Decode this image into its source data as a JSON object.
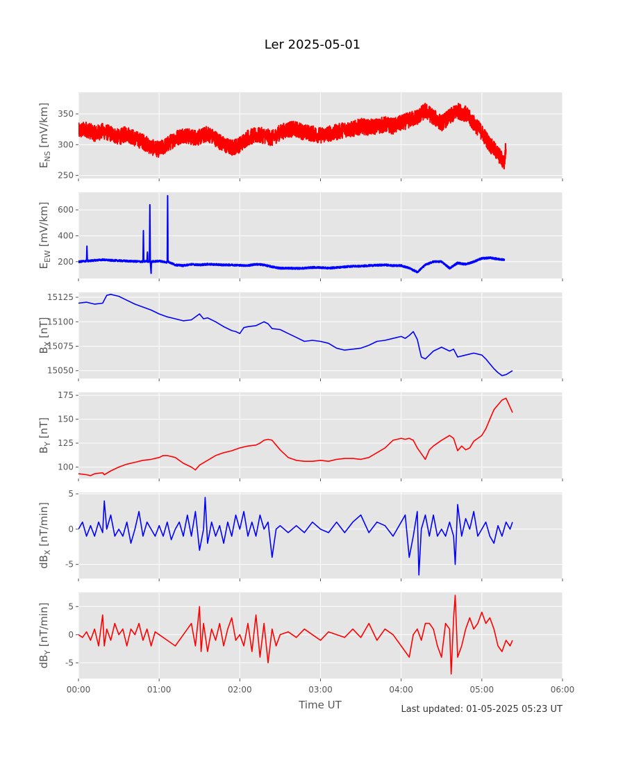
{
  "title": "Ler 2025-05-01",
  "xlabel": "Time UT",
  "footer": "Last updated: 01-05-2025 05:23 UT",
  "x_ticks": [
    "00:00",
    "01:00",
    "02:00",
    "03:00",
    "04:00",
    "05:00",
    "06:00"
  ],
  "chart_data": [
    {
      "type": "line",
      "name": "ens",
      "ylabel": "E_NS [mV/km]",
      "ylabel_main": "E",
      "ylabel_sub": "NS",
      "ylabel_tail": " [mV/km]",
      "x_unit": "hours UT",
      "xlim": [
        0,
        6
      ],
      "ylim": [
        245,
        385
      ],
      "yticks": [
        250,
        300,
        350
      ],
      "color": "#ff0000",
      "noise": 13,
      "stroke_width": 2,
      "series": [
        {
          "x": [
            0,
            0.1,
            0.2,
            0.3,
            0.4,
            0.5,
            0.6,
            0.7,
            0.8,
            0.9,
            1.0,
            1.1,
            1.2,
            1.3,
            1.4,
            1.5,
            1.6,
            1.7,
            1.8,
            1.9,
            2.0,
            2.1,
            2.2,
            2.3,
            2.4,
            2.5,
            2.6,
            2.7,
            2.8,
            2.9,
            3.0,
            3.1,
            3.2,
            3.3,
            3.4,
            3.5,
            3.6,
            3.7,
            3.8,
            3.9,
            4.0,
            4.1,
            4.2,
            4.3,
            4.4,
            4.5,
            4.6,
            4.7,
            4.8,
            4.9,
            5.0,
            5.1,
            5.2,
            5.28,
            5.3
          ],
          "y": [
            322,
            325,
            318,
            322,
            318,
            312,
            318,
            310,
            305,
            296,
            292,
            300,
            310,
            316,
            312,
            312,
            318,
            310,
            300,
            295,
            300,
            312,
            315,
            315,
            310,
            320,
            325,
            325,
            320,
            318,
            315,
            318,
            320,
            325,
            325,
            330,
            328,
            330,
            333,
            330,
            335,
            340,
            345,
            355,
            345,
            335,
            345,
            355,
            350,
            335,
            320,
            300,
            285,
            270,
            300
          ]
        }
      ]
    },
    {
      "type": "line",
      "name": "eew",
      "ylabel": "E_EW [mV/km]",
      "ylabel_main": "E",
      "ylabel_sub": "EW",
      "ylabel_tail": " [mV/km]",
      "x_unit": "hours UT",
      "xlim": [
        0,
        6
      ],
      "ylim": [
        70,
        735
      ],
      "yticks": [
        200,
        400,
        600
      ],
      "color": "#0000ff",
      "noise": 7,
      "stroke_width": 2,
      "series": [
        {
          "x": [
            0,
            0.1,
            0.105,
            0.11,
            0.2,
            0.3,
            0.4,
            0.5,
            0.6,
            0.8,
            0.805,
            0.81,
            0.85,
            0.855,
            0.86,
            0.88,
            0.885,
            0.89,
            0.9,
            0.905,
            0.91,
            1.0,
            1.1,
            1.105,
            1.11,
            1.2,
            1.3,
            1.4,
            1.5,
            1.6,
            1.7,
            1.8,
            1.9,
            2.0,
            2.1,
            2.2,
            2.3,
            2.4,
            2.5,
            2.6,
            2.7,
            2.8,
            2.9,
            3.0,
            3.1,
            3.2,
            3.3,
            3.4,
            3.5,
            3.6,
            3.7,
            3.8,
            3.9,
            4.0,
            4.1,
            4.2,
            4.3,
            4.4,
            4.5,
            4.6,
            4.7,
            4.8,
            4.9,
            5.0,
            5.1,
            5.2,
            5.28
          ],
          "y": [
            200,
            205,
            320,
            205,
            210,
            215,
            210,
            208,
            205,
            200,
            440,
            200,
            205,
            280,
            200,
            205,
            640,
            200,
            110,
            200,
            200,
            205,
            195,
            710,
            200,
            175,
            170,
            180,
            175,
            180,
            178,
            175,
            175,
            172,
            170,
            180,
            175,
            160,
            150,
            150,
            148,
            150,
            155,
            155,
            150,
            155,
            160,
            165,
            165,
            170,
            172,
            175,
            170,
            170,
            150,
            120,
            175,
            200,
            200,
            150,
            190,
            180,
            200,
            225,
            230,
            220,
            215
          ]
        }
      ]
    },
    {
      "type": "line",
      "name": "bx",
      "ylabel": "B_X [nT]",
      "ylabel_main": "B",
      "ylabel_sub": "X",
      "ylabel_tail": " [nT]",
      "x_unit": "hours UT",
      "xlim": [
        0,
        6
      ],
      "ylim": [
        15042,
        15130
      ],
      "yticks": [
        15050,
        15075,
        15100,
        15125
      ],
      "color": "#0000ff",
      "noise": 0,
      "stroke_width": 1.6,
      "series": [
        {
          "x": [
            0,
            0.1,
            0.2,
            0.3,
            0.35,
            0.4,
            0.5,
            0.6,
            0.7,
            0.8,
            0.9,
            1.0,
            1.1,
            1.2,
            1.3,
            1.4,
            1.5,
            1.55,
            1.6,
            1.7,
            1.8,
            1.9,
            1.95,
            2.0,
            2.05,
            2.1,
            2.2,
            2.3,
            2.35,
            2.4,
            2.5,
            2.6,
            2.7,
            2.8,
            2.9,
            3.0,
            3.1,
            3.2,
            3.3,
            3.4,
            3.5,
            3.6,
            3.7,
            3.8,
            3.9,
            4.0,
            4.05,
            4.1,
            4.15,
            4.2,
            4.25,
            4.3,
            4.4,
            4.5,
            4.6,
            4.65,
            4.7,
            4.8,
            4.9,
            5.0,
            5.05,
            5.1,
            5.15,
            5.2,
            5.25,
            5.3,
            5.38
          ],
          "y": [
            15119,
            15120,
            15118,
            15119,
            15127,
            15128,
            15126,
            15122,
            15118,
            15115,
            15112,
            15108,
            15105,
            15103,
            15101,
            15102,
            15108,
            15103,
            15104,
            15100,
            15095,
            15091,
            15090,
            15088,
            15094,
            15095,
            15096,
            15100,
            15098,
            15093,
            15092,
            15088,
            15084,
            15080,
            15081,
            15080,
            15078,
            15073,
            15071,
            15072,
            15073,
            15076,
            15080,
            15081,
            15083,
            15085,
            15083,
            15086,
            15090,
            15082,
            15064,
            15062,
            15070,
            15074,
            15070,
            15072,
            15064,
            15066,
            15068,
            15066,
            15062,
            15057,
            15052,
            15048,
            15045,
            15046,
            15050
          ]
        }
      ]
    },
    {
      "type": "line",
      "name": "by",
      "ylabel": "B_Y [nT]",
      "ylabel_main": "B",
      "ylabel_sub": "Y",
      "ylabel_tail": " [nT]",
      "x_unit": "hours UT",
      "xlim": [
        0,
        6
      ],
      "ylim": [
        88,
        178
      ],
      "yticks": [
        100,
        125,
        150,
        175
      ],
      "color": "#ff0000",
      "noise": 0,
      "stroke_width": 1.6,
      "series": [
        {
          "x": [
            0,
            0.1,
            0.15,
            0.2,
            0.3,
            0.32,
            0.4,
            0.5,
            0.6,
            0.7,
            0.8,
            0.9,
            1.0,
            1.05,
            1.1,
            1.2,
            1.3,
            1.4,
            1.45,
            1.5,
            1.6,
            1.7,
            1.8,
            1.9,
            2.0,
            2.1,
            2.2,
            2.25,
            2.3,
            2.35,
            2.4,
            2.5,
            2.6,
            2.7,
            2.8,
            2.9,
            3.0,
            3.1,
            3.2,
            3.3,
            3.4,
            3.5,
            3.6,
            3.7,
            3.8,
            3.9,
            4.0,
            4.05,
            4.1,
            4.15,
            4.2,
            4.25,
            4.3,
            4.35,
            4.4,
            4.5,
            4.6,
            4.65,
            4.7,
            4.75,
            4.8,
            4.85,
            4.9,
            5.0,
            5.05,
            5.1,
            5.15,
            5.2,
            5.25,
            5.3,
            5.38
          ],
          "y": [
            93,
            92,
            91,
            93,
            94,
            92,
            96,
            100,
            103,
            105,
            107,
            108,
            110,
            112,
            112,
            110,
            104,
            100,
            97,
            102,
            107,
            112,
            115,
            117,
            120,
            122,
            123,
            125,
            128,
            129,
            128,
            118,
            110,
            107,
            106,
            106,
            107,
            106,
            108,
            109,
            109,
            108,
            110,
            115,
            120,
            128,
            130,
            129,
            130,
            128,
            120,
            114,
            108,
            118,
            122,
            128,
            133,
            130,
            117,
            122,
            118,
            120,
            127,
            133,
            140,
            150,
            160,
            165,
            170,
            172,
            157
          ]
        }
      ]
    },
    {
      "type": "line",
      "name": "dbx",
      "ylabel": "dB_X [nT/min]",
      "ylabel_main": "dB",
      "ylabel_sub": "X",
      "ylabel_tail": " [nT/min]",
      "x_unit": "hours UT",
      "xlim": [
        0,
        6
      ],
      "ylim": [
        -7,
        5.2
      ],
      "yticks": [
        -5,
        0,
        5
      ],
      "color": "#0000ff",
      "noise": 0,
      "stroke_width": 1.6,
      "series": [
        {
          "x": [
            0,
            0.05,
            0.1,
            0.15,
            0.2,
            0.25,
            0.3,
            0.32,
            0.35,
            0.4,
            0.45,
            0.5,
            0.55,
            0.6,
            0.65,
            0.7,
            0.75,
            0.8,
            0.85,
            0.9,
            0.95,
            1.0,
            1.05,
            1.1,
            1.15,
            1.2,
            1.25,
            1.3,
            1.35,
            1.4,
            1.45,
            1.5,
            1.55,
            1.57,
            1.6,
            1.65,
            1.7,
            1.75,
            1.8,
            1.85,
            1.9,
            1.95,
            2.0,
            2.05,
            2.1,
            2.15,
            2.2,
            2.25,
            2.3,
            2.35,
            2.4,
            2.45,
            2.5,
            2.6,
            2.7,
            2.8,
            2.9,
            3.0,
            3.1,
            3.2,
            3.3,
            3.4,
            3.5,
            3.6,
            3.7,
            3.8,
            3.9,
            4.0,
            4.05,
            4.1,
            4.15,
            4.2,
            4.22,
            4.25,
            4.3,
            4.35,
            4.4,
            4.45,
            4.5,
            4.55,
            4.6,
            4.65,
            4.67,
            4.7,
            4.75,
            4.8,
            4.85,
            4.9,
            4.95,
            5.0,
            5.05,
            5.1,
            5.15,
            5.2,
            5.25,
            5.3,
            5.35,
            5.38
          ],
          "y": [
            0,
            1,
            -1,
            0.5,
            -1,
            1,
            -0.5,
            4,
            0,
            2,
            -1,
            0,
            -1,
            1,
            -2,
            0,
            2.5,
            -1,
            1,
            0,
            -1,
            0.5,
            -1,
            1,
            -1.5,
            0,
            1,
            -1,
            2,
            -1,
            2.5,
            -3,
            0,
            4.5,
            -2,
            1,
            -1,
            0.5,
            -2,
            1,
            -1,
            2,
            0,
            2.5,
            -1,
            1,
            -1,
            2,
            0,
            1,
            -4,
            0,
            0.5,
            -0.5,
            0.5,
            -0.5,
            1,
            0,
            -0.5,
            1,
            -0.5,
            1,
            2,
            -0.5,
            1,
            0.5,
            -1,
            1,
            2,
            -4,
            -1,
            2.5,
            -6.5,
            0,
            2,
            -1,
            2,
            -1,
            0,
            -1,
            1,
            -1,
            -5,
            3.5,
            -1,
            1.5,
            0,
            2.5,
            -1,
            0,
            1,
            -1,
            -2,
            0.5,
            -1,
            1,
            0,
            1
          ]
        }
      ]
    },
    {
      "type": "line",
      "name": "dby",
      "ylabel": "dB_Y [nT/min]",
      "ylabel_main": "dB",
      "ylabel_sub": "Y",
      "ylabel_tail": " [nT/min]",
      "x_unit": "hours UT",
      "xlim": [
        0,
        6
      ],
      "ylim": [
        -7.8,
        7.5
      ],
      "yticks": [
        -5,
        0,
        5
      ],
      "color": "#ff0000",
      "noise": 0,
      "stroke_width": 1.6,
      "series": [
        {
          "x": [
            0,
            0.05,
            0.1,
            0.15,
            0.2,
            0.25,
            0.3,
            0.32,
            0.35,
            0.4,
            0.45,
            0.5,
            0.55,
            0.6,
            0.65,
            0.7,
            0.75,
            0.8,
            0.85,
            0.9,
            0.95,
            1.0,
            1.1,
            1.2,
            1.3,
            1.35,
            1.4,
            1.45,
            1.5,
            1.52,
            1.55,
            1.6,
            1.65,
            1.7,
            1.75,
            1.8,
            1.85,
            1.9,
            1.95,
            2.0,
            2.05,
            2.1,
            2.15,
            2.2,
            2.25,
            2.3,
            2.35,
            2.4,
            2.45,
            2.5,
            2.6,
            2.7,
            2.8,
            2.9,
            3.0,
            3.1,
            3.2,
            3.3,
            3.4,
            3.5,
            3.6,
            3.7,
            3.8,
            3.9,
            4.0,
            4.1,
            4.15,
            4.2,
            4.25,
            4.3,
            4.35,
            4.4,
            4.45,
            4.5,
            4.55,
            4.6,
            4.62,
            4.65,
            4.67,
            4.7,
            4.75,
            4.8,
            4.85,
            4.9,
            4.95,
            5.0,
            5.05,
            5.1,
            5.15,
            5.2,
            5.25,
            5.3,
            5.35,
            5.38
          ],
          "y": [
            0,
            -0.5,
            0.5,
            -1,
            1,
            -2,
            3.5,
            -2,
            1,
            -1,
            2,
            0,
            1,
            -2,
            1,
            0,
            2,
            -1,
            1,
            -2,
            0.5,
            0,
            -1,
            -2,
            0,
            1,
            2,
            -2,
            5,
            -3,
            2,
            -3,
            1,
            -1,
            2,
            -2,
            1,
            3,
            -1,
            0,
            -2,
            2,
            -3,
            3.5,
            -4,
            2,
            -5,
            1,
            -2,
            0,
            0.5,
            -0.5,
            1,
            0,
            -1,
            0.5,
            0,
            -0.5,
            1,
            -0.5,
            2,
            -1,
            1,
            0,
            -2,
            -4,
            0,
            1,
            -1,
            2,
            2,
            1,
            -2,
            -4,
            2,
            1,
            -7,
            3,
            7,
            -4,
            -2,
            1,
            3,
            1,
            2,
            4,
            2,
            3,
            1,
            -2,
            -3,
            -1,
            -2,
            -1
          ]
        }
      ]
    }
  ]
}
